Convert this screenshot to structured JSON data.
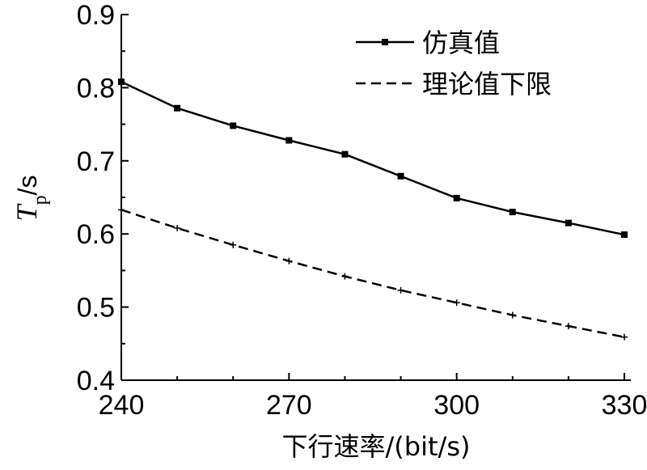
{
  "chart_data": {
    "type": "line",
    "x": [
      240,
      250,
      260,
      270,
      280,
      290,
      300,
      310,
      320,
      330
    ],
    "xlim": [
      240,
      330
    ],
    "ylim": [
      0.4,
      0.9
    ],
    "xticks": [
      "240",
      "270",
      "300",
      "330"
    ],
    "yticks": [
      "0.4",
      "0.5",
      "0.6",
      "0.7",
      "0.8",
      "0.9"
    ],
    "xlabel": "下行速率/(bit/s)",
    "ylabel": {
      "symbol": "T",
      "subscript": "p",
      "unit": "/s"
    },
    "legend_position": "top-right",
    "grid": false,
    "series": [
      {
        "name": "仿真值",
        "style": "solid",
        "marker": "square",
        "values": [
          0.808,
          0.772,
          0.748,
          0.728,
          0.709,
          0.679,
          0.649,
          0.63,
          0.615,
          0.599
        ]
      },
      {
        "name": "理论值下限",
        "style": "dashed",
        "marker": "plus",
        "values": [
          0.633,
          0.608,
          0.585,
          0.563,
          0.542,
          0.523,
          0.506,
          0.489,
          0.474,
          0.459
        ]
      }
    ]
  }
}
